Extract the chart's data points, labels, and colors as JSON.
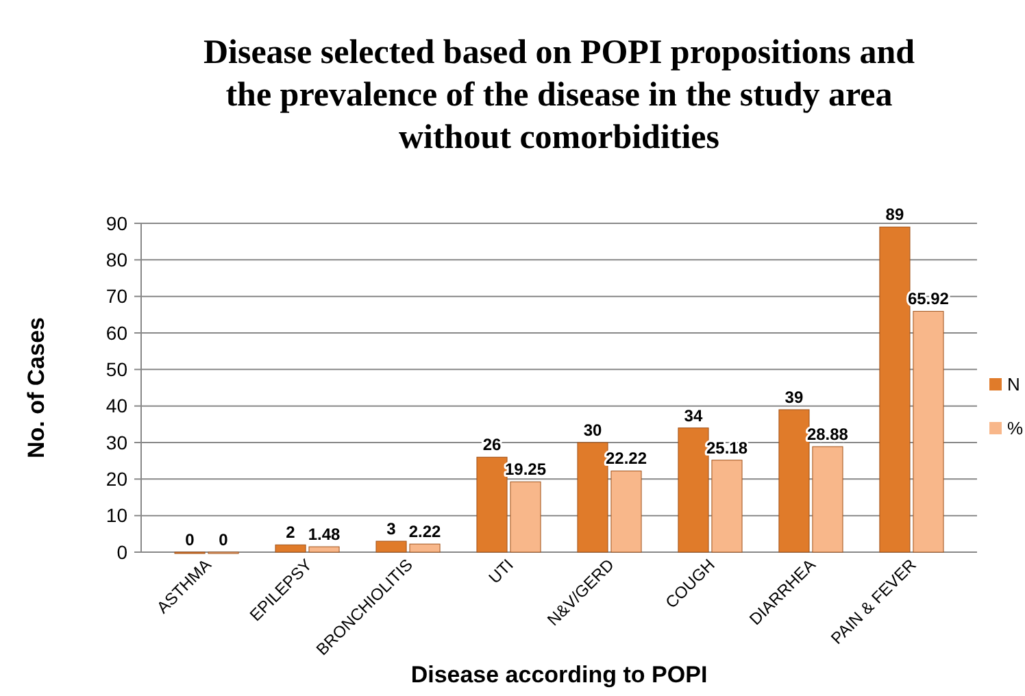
{
  "chart_data": {
    "type": "bar",
    "title": "Disease selected based on POPI propositions and the prevalence of the disease in the study area without comorbidities",
    "xlabel": "Disease according to POPI",
    "ylabel": "No. of Cases",
    "categories": [
      "ASTHMA",
      "EPILEPSY",
      "BRONCHIOLITIS",
      "UTI",
      "N&V/GERD",
      "COUGH",
      "DIARRHEA",
      "PAIN & FEVER"
    ],
    "series": [
      {
        "name": "N",
        "color": "#e07b2a",
        "values": [
          0,
          2,
          3,
          26,
          30,
          34,
          39,
          89
        ]
      },
      {
        "name": "%",
        "color": "#f8b78a",
        "values": [
          0,
          1.48,
          2.22,
          19.25,
          22.22,
          25.18,
          28.88,
          65.92
        ]
      }
    ],
    "ylim": [
      0,
      90
    ],
    "yticks": [
      0,
      10,
      20,
      30,
      40,
      50,
      60,
      70,
      80,
      90
    ],
    "grid": "y",
    "legend": "right",
    "data_labels": true
  }
}
